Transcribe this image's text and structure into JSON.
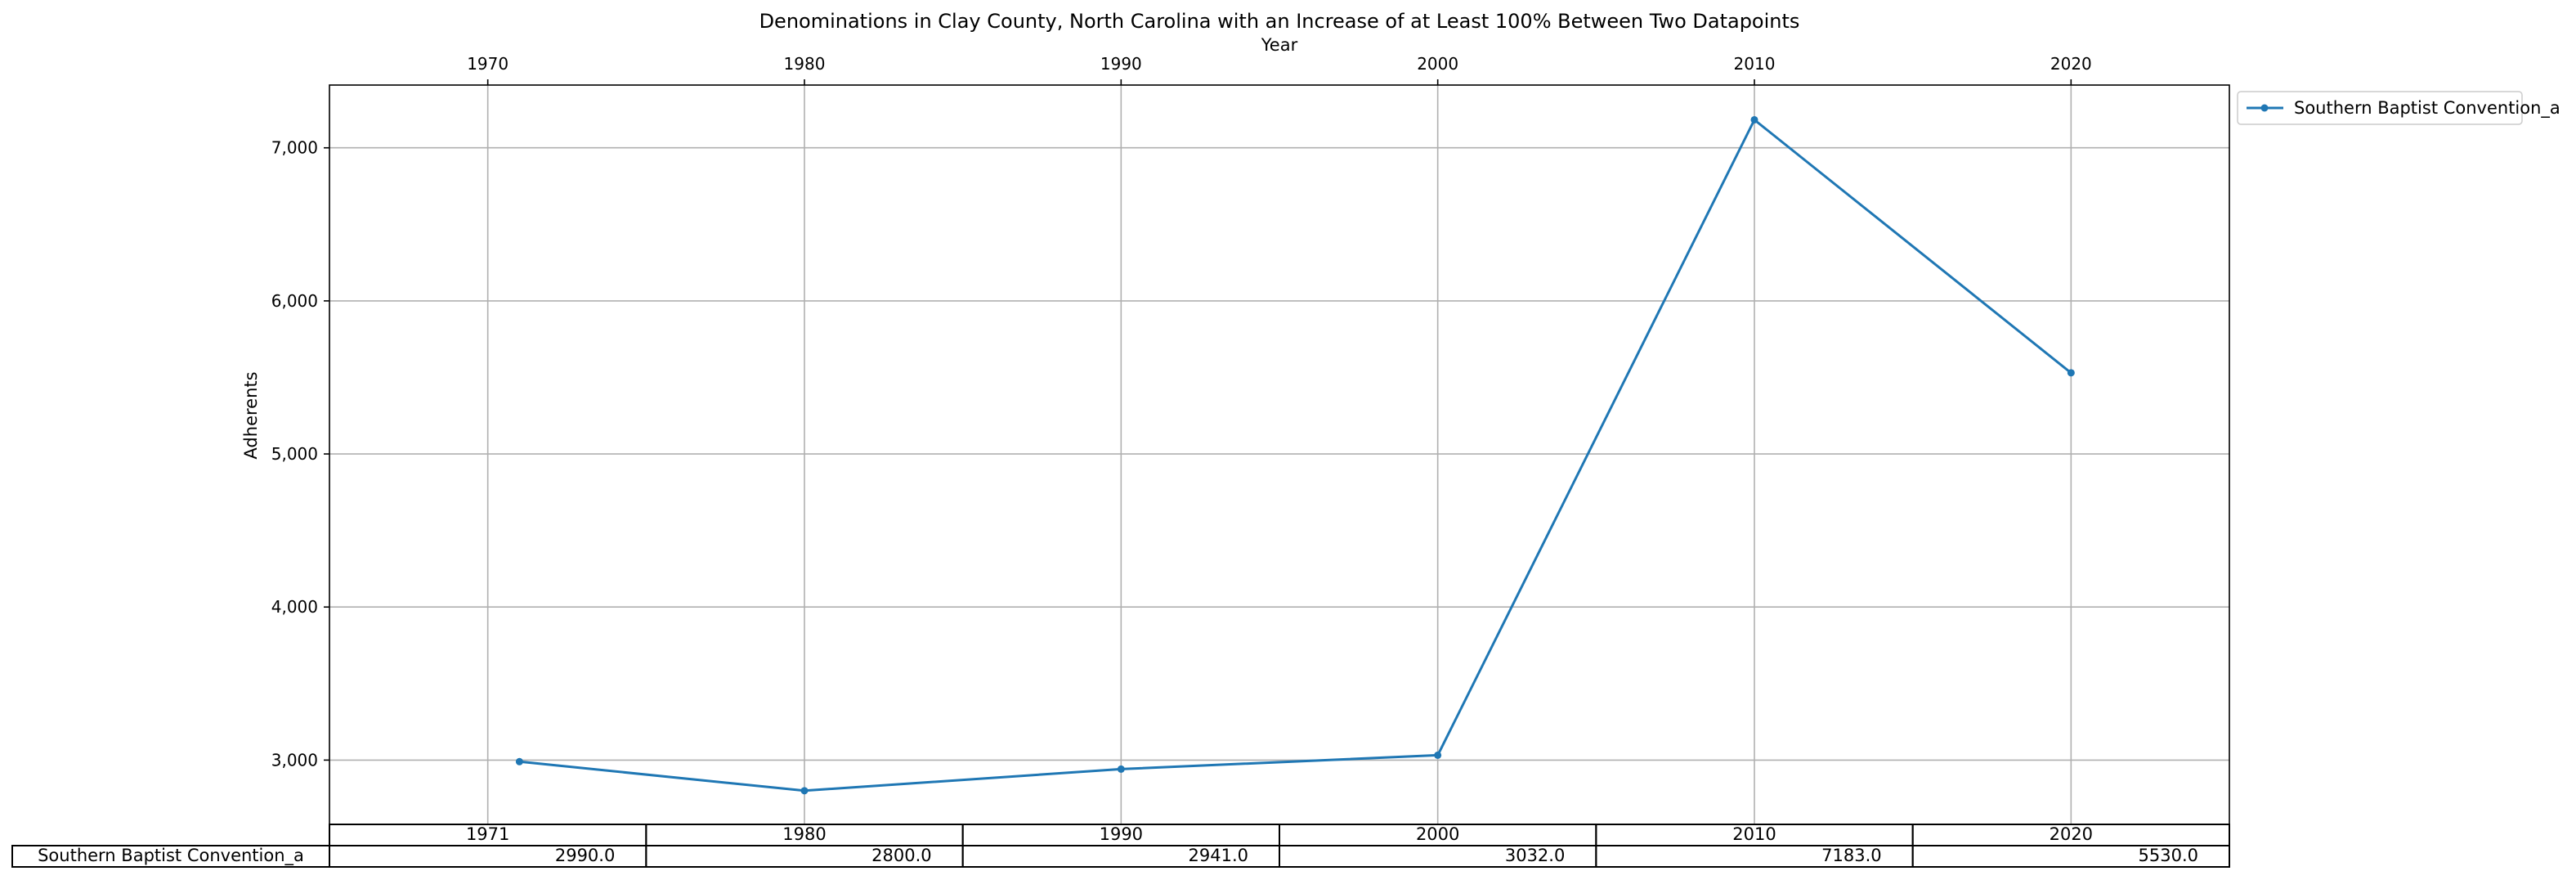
{
  "colors": {
    "series": "#1f77b4",
    "grid": "#b0b0b0"
  },
  "chart_data": {
    "type": "line",
    "title": "Denominations in Clay County, North Carolina with an Increase of at Least 100% Between Two Datapoints",
    "xlabel": "Year",
    "ylabel": "Adherents",
    "xlim": [
      1965,
      2025
    ],
    "ylim": [
      2580,
      7410
    ],
    "x_ticks": [
      1970,
      1980,
      1990,
      2000,
      2010,
      2020
    ],
    "x_tick_labels": [
      "1970",
      "1980",
      "1990",
      "2000",
      "2010",
      "2020"
    ],
    "y_ticks": [
      3000,
      4000,
      5000,
      6000,
      7000
    ],
    "y_tick_labels": [
      "3,000",
      "4,000",
      "5,000",
      "6,000",
      "7,000"
    ],
    "x_axis_position": "top",
    "grid": true,
    "legend_position": "outside-top-right",
    "series": [
      {
        "name": "Southern Baptist Convention_a",
        "x": [
          1971,
          1980,
          1990,
          2000,
          2010,
          2020
        ],
        "values": [
          2990,
          2800,
          2941,
          3032,
          7183,
          5530
        ],
        "marker": "dot"
      }
    ],
    "table": {
      "columns": [
        "1971",
        "1980",
        "1990",
        "2000",
        "2010",
        "2020"
      ],
      "rows": [
        {
          "label": "Southern Baptist Convention_a",
          "cells": [
            "2990.0",
            "2800.0",
            "2941.0",
            "3032.0",
            "7183.0",
            "5530.0"
          ]
        }
      ]
    }
  }
}
